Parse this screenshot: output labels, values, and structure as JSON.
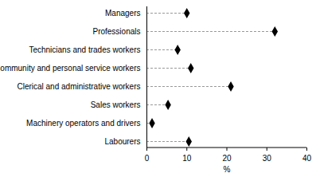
{
  "chart_data": {
    "type": "dot",
    "orientation": "horizontal",
    "categories": [
      "Managers",
      "Professionals",
      "Technicians and trades workers",
      "Community and personal service workers",
      "Clerical and administrative workers",
      "Sales workers",
      "Machinery operators and drivers",
      "Labourers"
    ],
    "values": [
      10,
      32,
      7.7,
      11,
      21,
      5.3,
      1.3,
      10.5
    ],
    "color": "#000000",
    "marker": "diamond",
    "line_style": "dashed",
    "xlim": [
      0,
      40
    ],
    "xticks": [
      0,
      10,
      20,
      30,
      40
    ],
    "x_label": "%",
    "grid": false
  }
}
